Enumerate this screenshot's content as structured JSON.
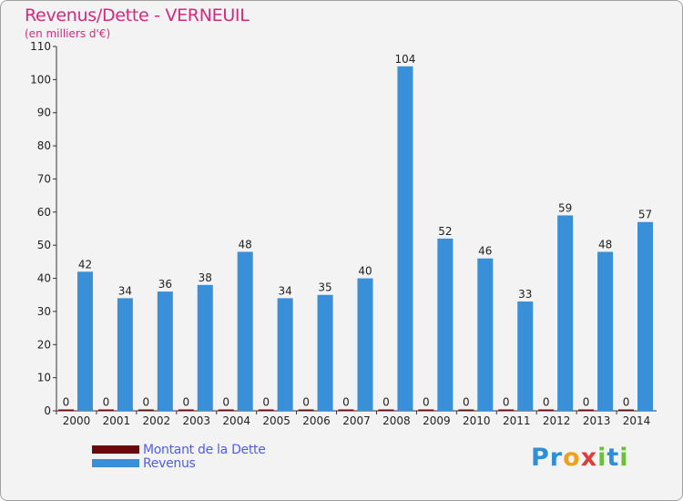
{
  "colors": {
    "title": "#d6287e",
    "legend_text": "#4f5ee8",
    "revenus": "#3a90d8",
    "dette": "#6b0a0a",
    "axis": "#333333"
  },
  "chart_data": {
    "type": "bar",
    "title": "Revenus/Dette - VERNEUIL",
    "subtitle": "(en milliers d'€)",
    "categories": [
      "2000",
      "2001",
      "2002",
      "2003",
      "2004",
      "2005",
      "2006",
      "2007",
      "2008",
      "2009",
      "2010",
      "2011",
      "2012",
      "2013",
      "2014"
    ],
    "series": [
      {
        "name": "Montant de la Dette",
        "color": "#6b0a0a",
        "values": [
          0,
          0,
          0,
          0,
          0,
          0,
          0,
          0,
          0,
          0,
          0,
          0,
          0,
          0,
          0
        ]
      },
      {
        "name": "Revenus",
        "color": "#3a90d8",
        "values": [
          42,
          34,
          36,
          38,
          48,
          34,
          35,
          40,
          104,
          52,
          46,
          33,
          59,
          48,
          57
        ]
      }
    ],
    "yticks": [
      0,
      10,
      20,
      30,
      40,
      50,
      60,
      70,
      80,
      90,
      100,
      110
    ],
    "ylim": [
      0,
      110
    ],
    "grid": false,
    "legend_position": "bottom-left"
  },
  "logo": {
    "letters": [
      "P",
      "r",
      "o",
      "x",
      "i",
      "t",
      "i"
    ],
    "colors": [
      "#2f8fd6",
      "#2f8fd6",
      "#f0a020",
      "#e23b3b",
      "#6cbf3a",
      "#2f8fd6",
      "#6cbf3a"
    ]
  }
}
